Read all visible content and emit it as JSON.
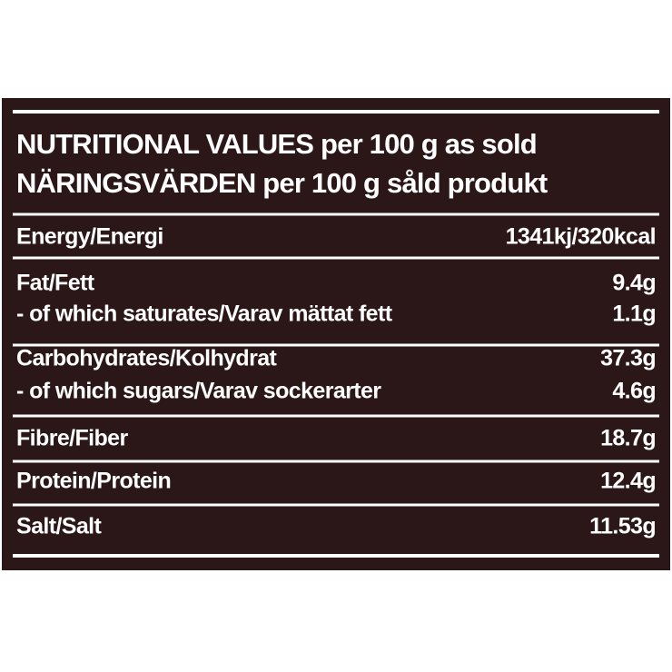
{
  "header": {
    "lines": [
      "NUTRITIONAL VALUES per 100 g as sold",
      "NÄRINGSVÄRDEN per 100 g såld produkt"
    ]
  },
  "table": {
    "groups": [
      [
        [
          "Energy/Energi",
          "1341kj/320kcal"
        ]
      ],
      [
        [
          "Fat/Fett",
          "9.4g"
        ],
        [
          "- of which saturates/Varav mättat fett",
          "1.1g"
        ]
      ],
      [
        [
          "Carbohydrates/Kolhydrat",
          "37.3g"
        ],
        [
          "- of which sugars/Varav sockerarter",
          "4.6g"
        ]
      ],
      [
        [
          "Fibre/Fiber",
          "18.7g"
        ]
      ],
      [
        [
          "Protein/Protein",
          "12.4g"
        ]
      ],
      [
        [
          "Salt/Salt",
          "11.53g"
        ]
      ]
    ]
  }
}
